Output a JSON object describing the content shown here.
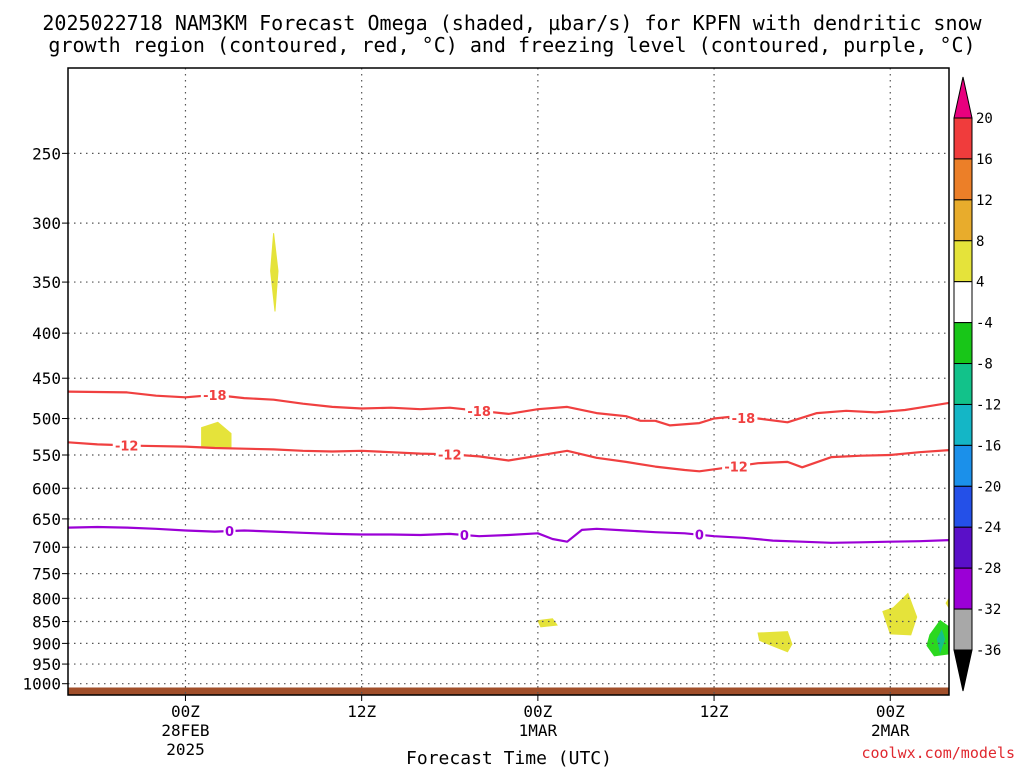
{
  "title_line1": "2025022718 NAM3KM Forecast Omega (shaded, µbar/s) for KPFN with dendritic snow",
  "title_line2": "growth region (contoured, red, °C) and freezing level (contoured, purple, °C)",
  "xlabel": "Forecast Time (UTC)",
  "credit": "coolwx.com/models",
  "chart_data": {
    "type": "area",
    "x_range_hours": [
      -8,
      52
    ],
    "y_range_hpa": [
      200,
      1030
    ],
    "y_scale": "log",
    "grid": true,
    "y_ticks": [
      250,
      300,
      350,
      400,
      450,
      500,
      550,
      600,
      650,
      700,
      750,
      800,
      850,
      900,
      950,
      1000
    ],
    "x_ticks": [
      {
        "hour": 0,
        "label": "00Z",
        "sub1": "28FEB",
        "sub2": "2025"
      },
      {
        "hour": 12,
        "label": "12Z",
        "sub1": "",
        "sub2": ""
      },
      {
        "hour": 24,
        "label": "00Z",
        "sub1": "1MAR",
        "sub2": ""
      },
      {
        "hour": 36,
        "label": "12Z",
        "sub1": "",
        "sub2": ""
      },
      {
        "hour": 48,
        "label": "00Z",
        "sub1": "2MAR",
        "sub2": ""
      }
    ],
    "contours": [
      {
        "level": "-18",
        "color": "#f04040",
        "points": [
          [
            -8,
            466
          ],
          [
            -4,
            467
          ],
          [
            -2,
            471
          ],
          [
            0,
            473
          ],
          [
            2,
            470
          ],
          [
            4,
            474
          ],
          [
            6,
            476
          ],
          [
            8,
            481
          ],
          [
            10,
            485
          ],
          [
            12,
            487
          ],
          [
            14,
            486
          ],
          [
            16,
            488
          ],
          [
            18,
            486
          ],
          [
            20,
            490
          ],
          [
            22,
            494
          ],
          [
            24,
            488
          ],
          [
            26,
            485
          ],
          [
            28,
            493
          ],
          [
            30,
            497
          ],
          [
            31,
            503
          ],
          [
            32,
            503
          ],
          [
            33,
            509
          ],
          [
            35,
            506
          ],
          [
            36,
            500
          ],
          [
            37,
            498
          ],
          [
            39,
            500
          ],
          [
            41,
            505
          ],
          [
            43,
            493
          ],
          [
            45,
            490
          ],
          [
            47,
            492
          ],
          [
            49,
            489
          ],
          [
            50,
            486
          ],
          [
            52,
            480
          ]
        ],
        "labels": [
          2,
          20,
          38
        ]
      },
      {
        "level": "-12",
        "color": "#f04040",
        "points": [
          [
            -8,
            532
          ],
          [
            -6,
            535
          ],
          [
            -3,
            537
          ],
          [
            0,
            538
          ],
          [
            2,
            540
          ],
          [
            4,
            541
          ],
          [
            6,
            542
          ],
          [
            8,
            544
          ],
          [
            10,
            545
          ],
          [
            12,
            544
          ],
          [
            14,
            546
          ],
          [
            16,
            548
          ],
          [
            18,
            549
          ],
          [
            20,
            552
          ],
          [
            22,
            558
          ],
          [
            24,
            551
          ],
          [
            26,
            544
          ],
          [
            28,
            554
          ],
          [
            30,
            560
          ],
          [
            32,
            567
          ],
          [
            34,
            572
          ],
          [
            35,
            574
          ],
          [
            37,
            568
          ],
          [
            39,
            562
          ],
          [
            41,
            560
          ],
          [
            42,
            568
          ],
          [
            44,
            553
          ],
          [
            46,
            551
          ],
          [
            48,
            550
          ],
          [
            50,
            546
          ],
          [
            52,
            543
          ]
        ],
        "labels": [
          -4,
          18,
          37.5
        ]
      },
      {
        "level": "0",
        "color": "#9b00d6",
        "points": [
          [
            -8,
            665
          ],
          [
            -6,
            664
          ],
          [
            -4,
            665
          ],
          [
            -2,
            667
          ],
          [
            0,
            670
          ],
          [
            2,
            672
          ],
          [
            4,
            670
          ],
          [
            6,
            672
          ],
          [
            8,
            674
          ],
          [
            10,
            676
          ],
          [
            12,
            677
          ],
          [
            14,
            677
          ],
          [
            16,
            678
          ],
          [
            18,
            676
          ],
          [
            20,
            680
          ],
          [
            22,
            678
          ],
          [
            24,
            675
          ],
          [
            25,
            685
          ],
          [
            26,
            690
          ],
          [
            27,
            669
          ],
          [
            28,
            667
          ],
          [
            30,
            670
          ],
          [
            32,
            673
          ],
          [
            34,
            675
          ],
          [
            36,
            680
          ],
          [
            38,
            683
          ],
          [
            40,
            688
          ],
          [
            42,
            690
          ],
          [
            44,
            692
          ],
          [
            46,
            691
          ],
          [
            48,
            690
          ],
          [
            50,
            689
          ],
          [
            52,
            687
          ]
        ],
        "labels": [
          3,
          19,
          35
        ]
      }
    ],
    "shaded_areas": [
      {
        "value": "4 to 8",
        "color": "#e5e33a",
        "points": [
          [
            6,
            308
          ],
          [
            6.3,
            340
          ],
          [
            6.1,
            378
          ],
          [
            5.8,
            340
          ]
        ]
      },
      {
        "value": "4 to 8",
        "color": "#e5e33a",
        "points": [
          [
            1.1,
            512
          ],
          [
            2.2,
            505
          ],
          [
            3.1,
            520
          ],
          [
            3.1,
            540
          ],
          [
            1.1,
            540
          ]
        ]
      },
      {
        "value": "4 to 8",
        "color": "#e5e33a",
        "points": [
          [
            24,
            848
          ],
          [
            25,
            844
          ],
          [
            25.3,
            858
          ],
          [
            24.2,
            862
          ]
        ]
      },
      {
        "value": "4 to 8",
        "color": "#e5e33a",
        "points": [
          [
            39,
            876
          ],
          [
            41,
            873
          ],
          [
            41.3,
            902
          ],
          [
            41,
            920
          ],
          [
            40,
            906
          ],
          [
            39.1,
            893
          ]
        ]
      },
      {
        "value": "4 to 8",
        "color": "#e5e33a",
        "points": [
          [
            47.5,
            828
          ],
          [
            48.2,
            820
          ],
          [
            49.2,
            790
          ],
          [
            49.8,
            840
          ],
          [
            49.4,
            880
          ],
          [
            48,
            878
          ]
        ]
      },
      {
        "value": "4 to 8",
        "color": "#e5e33a",
        "points": [
          [
            51.8,
            810
          ],
          [
            52,
            800
          ],
          [
            52,
            820
          ]
        ]
      },
      {
        "value": "-4 to -8",
        "color": "#2bd81f",
        "points": [
          [
            50.7,
            880
          ],
          [
            51.4,
            848
          ],
          [
            52,
            862
          ],
          [
            52,
            925
          ],
          [
            51,
            930
          ],
          [
            50.5,
            905
          ]
        ]
      },
      {
        "value": "-8 to -12",
        "color": "#15c08a",
        "points": [
          [
            51.2,
            890
          ],
          [
            51.5,
            870
          ],
          [
            51.7,
            890
          ],
          [
            51.4,
            920
          ]
        ]
      }
    ],
    "terrain": {
      "color": "#a14f2a",
      "top_hpa": 1010
    },
    "colorbar": {
      "levels": [
        "20",
        "16",
        "12",
        "8",
        "4",
        "-4",
        "-8",
        "-12",
        "-16",
        "-20",
        "-24",
        "-28",
        "-32",
        "-36"
      ],
      "colors": [
        "#e8007e",
        "#f03c3c",
        "#ec7f28",
        "#e8ac2c",
        "#e5e33a",
        "#ffffff",
        "#18c618",
        "#12c28a",
        "#14b6c6",
        "#1b90ea",
        "#2450e8",
        "#5a10c8",
        "#9b00d6",
        "#a8a8a8",
        "#000000"
      ]
    }
  }
}
